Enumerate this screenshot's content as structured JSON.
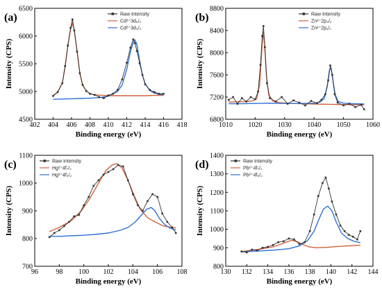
{
  "chart_data": [
    {
      "type": "line",
      "panel_label": "(a)",
      "xlabel": "Binding energy (eV)",
      "ylabel": "Intensity (CPS)",
      "xlim": [
        402,
        418
      ],
      "ylim": [
        4500,
        6500
      ],
      "x_ticks": [
        402,
        404,
        406,
        408,
        410,
        412,
        414,
        416,
        418
      ],
      "y_ticks": [
        4500,
        5000,
        5500,
        6000,
        6500
      ],
      "legend_position": "top-right",
      "legend": [
        {
          "label": "Raw Intensity",
          "color": "#333333",
          "marker": "square"
        },
        {
          "label": "Cd²⁺3d₅/₂",
          "color": "#d0603a",
          "marker": "none"
        },
        {
          "label": "Cd²⁺3d₃/₂",
          "color": "#2f6fd6",
          "marker": "none"
        }
      ],
      "series": [
        {
          "name": "Raw Intensity",
          "color": "#333333",
          "style": "raw",
          "x": [
            404.0,
            404.5,
            405.0,
            405.3,
            405.6,
            405.9,
            406.1,
            406.3,
            406.6,
            406.9,
            407.2,
            407.6,
            408.0,
            408.5,
            409.0,
            409.5,
            410.0,
            410.5,
            411.0,
            411.5,
            412.0,
            412.4,
            412.7,
            412.9,
            413.1,
            413.4,
            413.7,
            414.0,
            414.5,
            415.0,
            415.5,
            416.0
          ],
          "y": [
            4920,
            4990,
            5150,
            5460,
            5830,
            6150,
            6300,
            6100,
            5720,
            5330,
            5120,
            5010,
            4960,
            4940,
            4900,
            4880,
            4930,
            4960,
            5030,
            5220,
            5520,
            5790,
            5940,
            5870,
            5730,
            5510,
            5300,
            5130,
            5030,
            4990,
            4960,
            4960
          ]
        },
        {
          "name": "Cd²⁺3d₅/₂",
          "color": "#d0603a",
          "style": "fit",
          "x": [
            404.0,
            404.5,
            405.0,
            405.3,
            405.6,
            405.9,
            406.1,
            406.3,
            406.6,
            406.9,
            407.2,
            407.6,
            408.0,
            408.5,
            409.0,
            410.0,
            411.0,
            412.0,
            413.0,
            414.0,
            415.0,
            416.0
          ],
          "y": [
            4930,
            4990,
            5160,
            5440,
            5830,
            6130,
            6230,
            6100,
            5730,
            5340,
            5120,
            5010,
            4960,
            4940,
            4935,
            4925,
            4925,
            4925,
            4925,
            4925,
            4930,
            4930
          ]
        },
        {
          "name": "Cd²⁺3d₃/₂",
          "color": "#2f6fd6",
          "style": "fit",
          "x": [
            404.0,
            405.0,
            406.0,
            407.0,
            408.0,
            409.0,
            410.0,
            411.0,
            411.5,
            412.0,
            412.4,
            412.7,
            412.9,
            413.1,
            413.4,
            413.7,
            414.0,
            414.5,
            415.0,
            415.5,
            416.0
          ],
          "y": [
            4860,
            4865,
            4870,
            4875,
            4880,
            4890,
            4915,
            5000,
            5120,
            5400,
            5720,
            5880,
            5930,
            5850,
            5560,
            5300,
            5140,
            5020,
            4970,
            4950,
            4945
          ]
        }
      ]
    },
    {
      "type": "line",
      "panel_label": "(b)",
      "xlabel": "Binding energy (eV)",
      "ylabel": "Intensity (CPS)",
      "xlim": [
        1010,
        1060
      ],
      "ylim": [
        6800,
        8800
      ],
      "x_ticks": [
        1010,
        1020,
        1030,
        1040,
        1050,
        1060
      ],
      "y_ticks": [
        6800,
        7200,
        7600,
        8000,
        8400,
        8800
      ],
      "legend_position": "top-right",
      "legend": [
        {
          "label": "Raw Intensity",
          "color": "#333333",
          "marker": "square"
        },
        {
          "label": "Zn²⁺2p₃/₂",
          "color": "#d0603a",
          "marker": "none"
        },
        {
          "label": "Zn²⁺2p₁/₂",
          "color": "#2f6fd6",
          "marker": "none"
        }
      ],
      "series": [
        {
          "name": "Raw Intensity",
          "color": "#333333",
          "style": "raw",
          "x": [
            1011,
            1012.5,
            1014,
            1015.5,
            1017,
            1018.5,
            1020,
            1021,
            1021.8,
            1022.4,
            1022.8,
            1023.3,
            1024,
            1025,
            1027,
            1029,
            1031,
            1033,
            1035,
            1037,
            1039,
            1041,
            1042.5,
            1043.8,
            1044.8,
            1045.5,
            1046.2,
            1047,
            1048,
            1050,
            1052,
            1054,
            1056,
            1057
          ],
          "y": [
            7150,
            7200,
            7080,
            7180,
            7120,
            7200,
            7160,
            7300,
            7780,
            8300,
            8480,
            8100,
            7450,
            7180,
            7120,
            7200,
            7080,
            7140,
            7100,
            7050,
            7130,
            7090,
            7150,
            7250,
            7500,
            7770,
            7600,
            7250,
            7100,
            7050,
            7080,
            7020,
            7060,
            6980
          ]
        },
        {
          "name": "Zn²⁺2p₃/₂",
          "color": "#d0603a",
          "style": "fit",
          "x": [
            1011,
            1014,
            1017,
            1019,
            1020.5,
            1021.5,
            1022.2,
            1022.7,
            1023.2,
            1023.8,
            1024.6,
            1026,
            1028,
            1032,
            1036,
            1040,
            1045,
            1050,
            1057
          ],
          "y": [
            7110,
            7115,
            7120,
            7130,
            7170,
            7420,
            8000,
            8380,
            8150,
            7600,
            7240,
            7130,
            7100,
            7085,
            7080,
            7075,
            7070,
            7065,
            7060
          ]
        },
        {
          "name": "Zn²⁺2p₁/₂",
          "color": "#2f6fd6",
          "style": "fit",
          "x": [
            1011,
            1015,
            1020,
            1025,
            1030,
            1035,
            1040,
            1042,
            1043.5,
            1044.5,
            1045.2,
            1045.8,
            1046.4,
            1047.2,
            1048.2,
            1050,
            1053,
            1057
          ],
          "y": [
            7080,
            7080,
            7085,
            7090,
            7085,
            7085,
            7090,
            7110,
            7180,
            7400,
            7680,
            7720,
            7500,
            7240,
            7120,
            7090,
            7080,
            7075
          ]
        }
      ]
    },
    {
      "type": "line",
      "panel_label": "(c)",
      "xlabel": "Binding energy (eV)",
      "ylabel": "Intensity (CPS)",
      "xlim": [
        96,
        108
      ],
      "ylim": [
        700,
        1100
      ],
      "x_ticks": [
        96,
        98,
        100,
        102,
        104,
        106,
        108
      ],
      "y_ticks": [
        700,
        800,
        900,
        1000,
        1100
      ],
      "legend_position": "top-left",
      "legend": [
        {
          "label": "Raw Intensity",
          "color": "#333333",
          "marker": "square"
        },
        {
          "label": "Hg²⁺4f₇/₂",
          "color": "#d0603a",
          "marker": "none"
        },
        {
          "label": "Hg²⁺4f₅/₂",
          "color": "#2f6fd6",
          "marker": "none"
        }
      ],
      "series": [
        {
          "name": "Raw Intensity",
          "color": "#333333",
          "style": "raw",
          "x": [
            97.2,
            97.6,
            98.0,
            98.4,
            98.8,
            99.2,
            99.6,
            100.0,
            100.4,
            100.8,
            101.2,
            101.6,
            102.0,
            102.4,
            102.8,
            103.2,
            103.6,
            104.0,
            104.4,
            104.8,
            105.2,
            105.6,
            106.0,
            106.4,
            106.8,
            107.2,
            107.5
          ],
          "y": [
            805,
            820,
            830,
            845,
            860,
            880,
            885,
            920,
            950,
            990,
            1010,
            1030,
            1040,
            1050,
            1065,
            1060,
            1010,
            960,
            920,
            900,
            935,
            960,
            950,
            890,
            860,
            840,
            820
          ]
        },
        {
          "name": "Hg²⁺4f₇/₂",
          "color": "#d0603a",
          "style": "fit",
          "x": [
            97.2,
            98.0,
            99.0,
            99.8,
            100.5,
            101.2,
            101.8,
            102.3,
            102.7,
            103.1,
            103.6,
            104.1,
            104.6,
            105.2,
            105.8,
            106.5,
            107.5
          ],
          "y": [
            825,
            840,
            865,
            900,
            945,
            1000,
            1045,
            1065,
            1070,
            1055,
            1010,
            955,
            905,
            875,
            860,
            845,
            838
          ]
        },
        {
          "name": "Hg²⁺4f₅/₂",
          "color": "#2f6fd6",
          "style": "fit",
          "x": [
            97.2,
            98.0,
            99.0,
            100.0,
            101.0,
            102.0,
            103.0,
            103.6,
            104.2,
            104.7,
            105.1,
            105.5,
            105.8,
            106.2,
            106.6,
            107.0,
            107.5
          ],
          "y": [
            808,
            808,
            810,
            812,
            815,
            820,
            830,
            840,
            860,
            885,
            905,
            912,
            900,
            870,
            850,
            838,
            830
          ]
        }
      ]
    },
    {
      "type": "line",
      "panel_label": "(d)",
      "xlabel": "Binding energy (eV)",
      "ylabel": "Intensity (CPS)",
      "xlim": [
        130,
        144
      ],
      "ylim": [
        800,
        1400
      ],
      "x_ticks": [
        130,
        132,
        134,
        136,
        138,
        140,
        142,
        144
      ],
      "y_ticks": [
        800,
        900,
        1000,
        1100,
        1200,
        1300,
        1400
      ],
      "legend_position": "top-left",
      "legend": [
        {
          "label": "Raw Intensity",
          "color": "#333333",
          "marker": "square"
        },
        {
          "label": "Pb²⁺4f₇/₂",
          "color": "#d0603a",
          "marker": "none"
        },
        {
          "label": "Pb²⁺4f₅/₂",
          "color": "#2f6fd6",
          "marker": "none"
        }
      ],
      "series": [
        {
          "name": "Raw Intensity",
          "color": "#333333",
          "style": "raw",
          "x": [
            131.5,
            132.0,
            132.5,
            133.0,
            133.5,
            134.0,
            134.5,
            135.0,
            135.5,
            136.0,
            136.5,
            137.0,
            137.5,
            138.0,
            138.4,
            138.8,
            139.2,
            139.5,
            139.8,
            140.1,
            140.5,
            140.9,
            141.3,
            141.7,
            142.1,
            142.5,
            142.8
          ],
          "y": [
            880,
            875,
            890,
            885,
            900,
            905,
            915,
            930,
            935,
            950,
            945,
            920,
            930,
            990,
            1080,
            1180,
            1250,
            1280,
            1220,
            1150,
            1080,
            1020,
            990,
            970,
            960,
            945,
            990
          ]
        },
        {
          "name": "Pb²⁺4f₇/₂",
          "color": "#d0603a",
          "style": "fit",
          "x": [
            131.5,
            132.5,
            133.5,
            134.5,
            135.2,
            135.8,
            136.3,
            136.8,
            137.3,
            137.9,
            138.6,
            139.5,
            140.5,
            141.5,
            142.8
          ],
          "y": [
            880,
            887,
            895,
            905,
            918,
            932,
            940,
            933,
            918,
            905,
            900,
            902,
            906,
            910,
            914
          ]
        },
        {
          "name": "Pb²⁺4f₅/₂",
          "color": "#2f6fd6",
          "style": "fit",
          "x": [
            131.5,
            133.0,
            134.5,
            136.0,
            137.0,
            137.8,
            138.4,
            138.9,
            139.3,
            139.7,
            140.1,
            140.5,
            141.0,
            141.6,
            142.2,
            142.8
          ],
          "y": [
            878,
            882,
            887,
            895,
            910,
            940,
            990,
            1060,
            1110,
            1125,
            1100,
            1040,
            980,
            950,
            935,
            928
          ]
        }
      ]
    }
  ]
}
